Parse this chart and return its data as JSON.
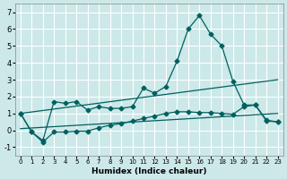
{
  "xlabel": "Humidex (Indice chaleur)",
  "background_color": "#cce8e8",
  "grid_color": "#ffffff",
  "line_color": "#006060",
  "xlim": [
    -0.5,
    23.5
  ],
  "ylim": [
    -1.5,
    7.5
  ],
  "xticks": [
    0,
    1,
    2,
    3,
    4,
    5,
    6,
    7,
    8,
    9,
    10,
    11,
    12,
    13,
    14,
    15,
    16,
    17,
    18,
    19,
    20,
    21,
    22,
    23
  ],
  "yticks": [
    -1,
    0,
    1,
    2,
    3,
    4,
    5,
    6,
    7
  ],
  "series1_x": [
    0,
    1,
    2,
    3,
    4,
    5,
    6,
    7,
    8,
    9,
    10,
    11,
    12,
    13,
    14,
    15,
    16,
    17,
    18,
    19,
    20,
    21,
    22,
    23
  ],
  "series1_y": [
    1.0,
    -0.1,
    -0.6,
    1.7,
    1.6,
    1.7,
    1.2,
    1.4,
    1.3,
    1.3,
    1.4,
    2.5,
    2.2,
    2.6,
    4.1,
    6.0,
    6.8,
    5.7,
    5.0,
    2.9,
    1.5,
    1.5,
    0.6,
    0.5
  ],
  "series2_x": [
    0,
    1,
    2,
    3,
    4,
    5,
    6,
    7,
    8,
    9,
    10,
    11,
    12,
    13,
    14,
    15,
    16,
    17,
    18,
    19,
    20,
    21,
    22,
    23
  ],
  "series2_y": [
    1.0,
    -0.1,
    -0.7,
    -0.1,
    -0.1,
    -0.05,
    -0.05,
    0.15,
    0.3,
    0.4,
    0.55,
    0.7,
    0.85,
    1.0,
    1.1,
    1.1,
    1.05,
    1.05,
    1.0,
    0.95,
    1.4,
    1.5,
    0.55,
    0.5
  ],
  "series3_x": [
    0,
    23
  ],
  "series3_y": [
    1.0,
    3.0
  ],
  "series4_x": [
    0,
    23
  ],
  "series4_y": [
    0.1,
    1.0
  ]
}
